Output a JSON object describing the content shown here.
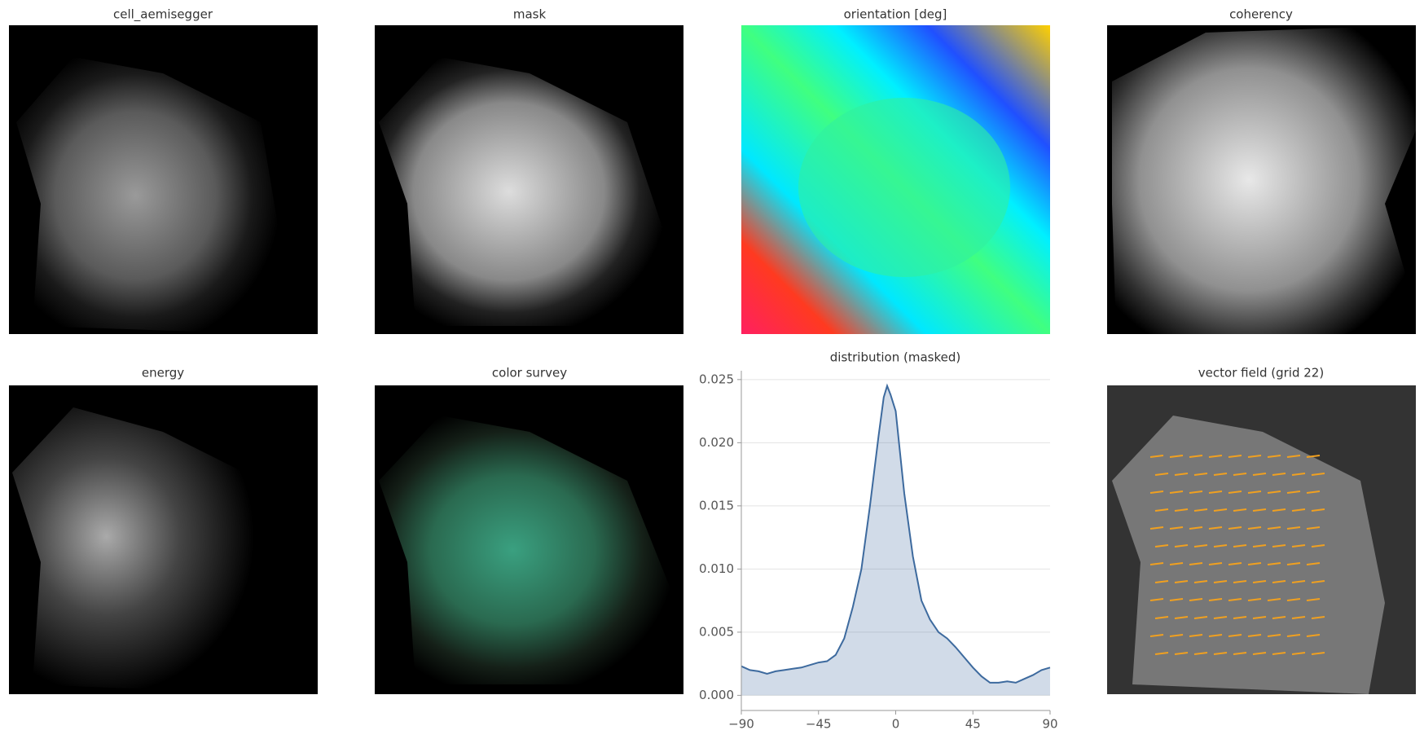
{
  "panels": [
    {
      "title": "cell_aemisegger"
    },
    {
      "title": "mask"
    },
    {
      "title": "orientation [deg]"
    },
    {
      "title": "coherency"
    },
    {
      "title": "energy"
    },
    {
      "title": "color survey"
    },
    {
      "title": "vector field (grid 22)"
    }
  ],
  "chart_data": {
    "type": "area",
    "title": "distribution (masked)",
    "x": [
      -90,
      -85,
      -80,
      -75,
      -70,
      -65,
      -60,
      -55,
      -50,
      -45,
      -40,
      -35,
      -30,
      -25,
      -20,
      -15,
      -10,
      -7,
      -5,
      -3,
      0,
      5,
      10,
      15,
      20,
      25,
      30,
      35,
      40,
      45,
      50,
      55,
      60,
      65,
      70,
      75,
      80,
      85,
      90
    ],
    "values": [
      0.0023,
      0.002,
      0.0019,
      0.0017,
      0.0019,
      0.002,
      0.0021,
      0.0022,
      0.0024,
      0.0026,
      0.0027,
      0.0032,
      0.0045,
      0.007,
      0.01,
      0.015,
      0.0205,
      0.0236,
      0.0245,
      0.0238,
      0.0225,
      0.016,
      0.011,
      0.0075,
      0.006,
      0.005,
      0.0045,
      0.0038,
      0.003,
      0.0022,
      0.0015,
      0.001,
      0.001,
      0.0011,
      0.001,
      0.0013,
      0.0016,
      0.002,
      0.0022
    ],
    "color": "#3d6a9e",
    "xlim": [
      -90,
      90
    ],
    "ylim": [
      -0.0012,
      0.0257
    ],
    "xticks": [
      {
        "value": -90,
        "label": "−90"
      },
      {
        "value": -45,
        "label": "−45"
      },
      0,
      45,
      90
    ],
    "yticks": [
      {
        "value": 0,
        "label": "0.000"
      },
      {
        "value": 0.005,
        "label": "0.005"
      },
      {
        "value": 0.01,
        "label": "0.010"
      },
      {
        "value": 0.015,
        "label": "0.015"
      },
      {
        "value": 0.02,
        "label": "0.020"
      },
      {
        "value": 0.025,
        "label": "0.025"
      }
    ],
    "grid": true
  }
}
